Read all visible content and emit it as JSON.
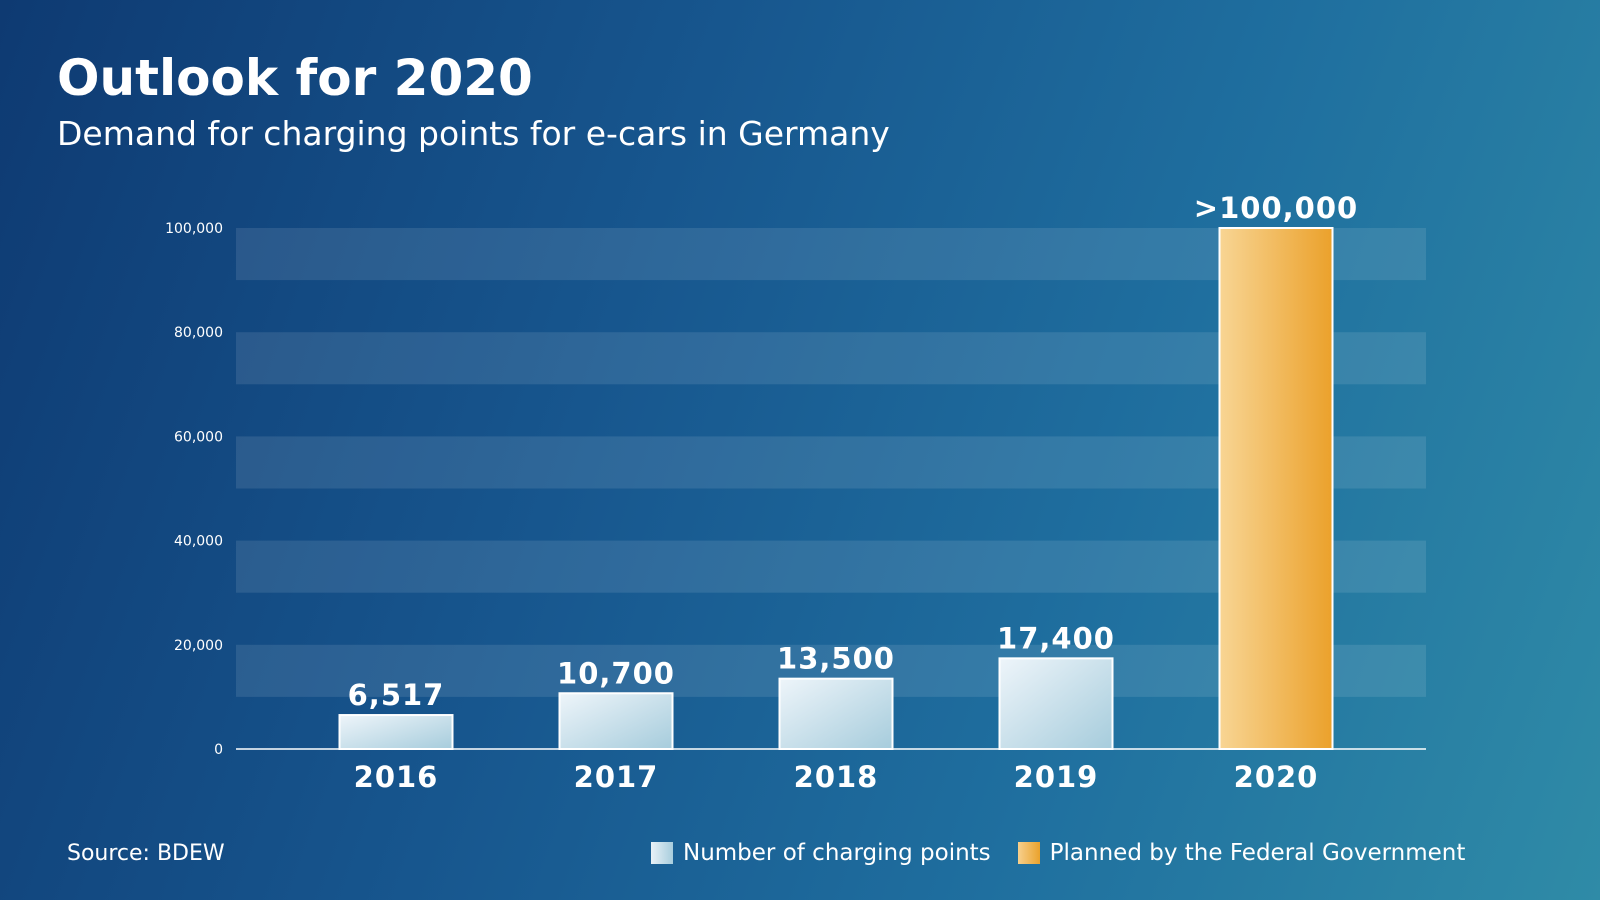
{
  "title": "Outlook for 2020",
  "subtitle": "Demand for charging points for e-cars in Germany",
  "source": "Source: BDEW",
  "chart_data": {
    "type": "bar",
    "categories": [
      "2016",
      "2017",
      "2018",
      "2019",
      "2020"
    ],
    "values": [
      6517,
      10700,
      13500,
      17400,
      100000
    ],
    "value_labels": [
      "6,517",
      "10,700",
      "13,500",
      "17,400",
      ">100,000"
    ],
    "series_assignment": [
      "actual",
      "actual",
      "actual",
      "actual",
      "planned"
    ],
    "legend": [
      {
        "key": "actual",
        "label": "Number of charging points"
      },
      {
        "key": "planned",
        "label": "Planned by the Federal Government"
      }
    ],
    "legend_position": "bottom-right",
    "ylim": [
      0,
      100000
    ],
    "y_ticks": [
      0,
      20000,
      40000,
      60000,
      80000,
      100000
    ],
    "y_tick_labels": [
      "0",
      "20,000",
      "40,000",
      "60,000",
      "80,000",
      "100,000"
    ],
    "grid": "alternating horizontal bands",
    "colors": {
      "actual": "#d7e8f1",
      "planned": "#eeaa3b",
      "band": "#ffffff",
      "axis": "#ffffff"
    }
  }
}
